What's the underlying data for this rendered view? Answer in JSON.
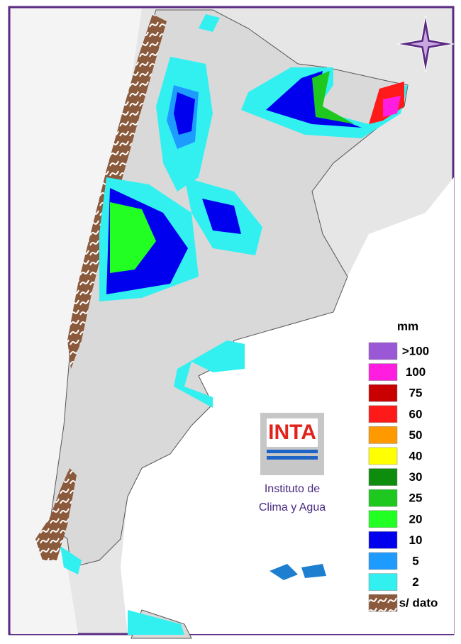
{
  "map": {
    "logo": {
      "text": "INTA",
      "line1": "Instituto de",
      "line2": "Clima y Agua"
    },
    "legend": {
      "title": "mm",
      "items": [
        {
          "label": ">100",
          "color": "#9a57d6"
        },
        {
          "label": "100",
          "color": "#ff1ee0"
        },
        {
          "label": "75",
          "color": "#c80000"
        },
        {
          "label": "60",
          "color": "#ff1a1a"
        },
        {
          "label": "50",
          "color": "#ff9900"
        },
        {
          "label": "40",
          "color": "#ffff00"
        },
        {
          "label": "30",
          "color": "#0e8c0e"
        },
        {
          "label": "25",
          "color": "#1fc81f"
        },
        {
          "label": "20",
          "color": "#22ff22"
        },
        {
          "label": "10",
          "color": "#0000ee"
        },
        {
          "label": "5",
          "color": "#1e9bff"
        },
        {
          "label": "2",
          "color": "#33f0f0"
        },
        {
          "label": "s/ dato",
          "color": "#8b5a3c"
        }
      ]
    }
  }
}
